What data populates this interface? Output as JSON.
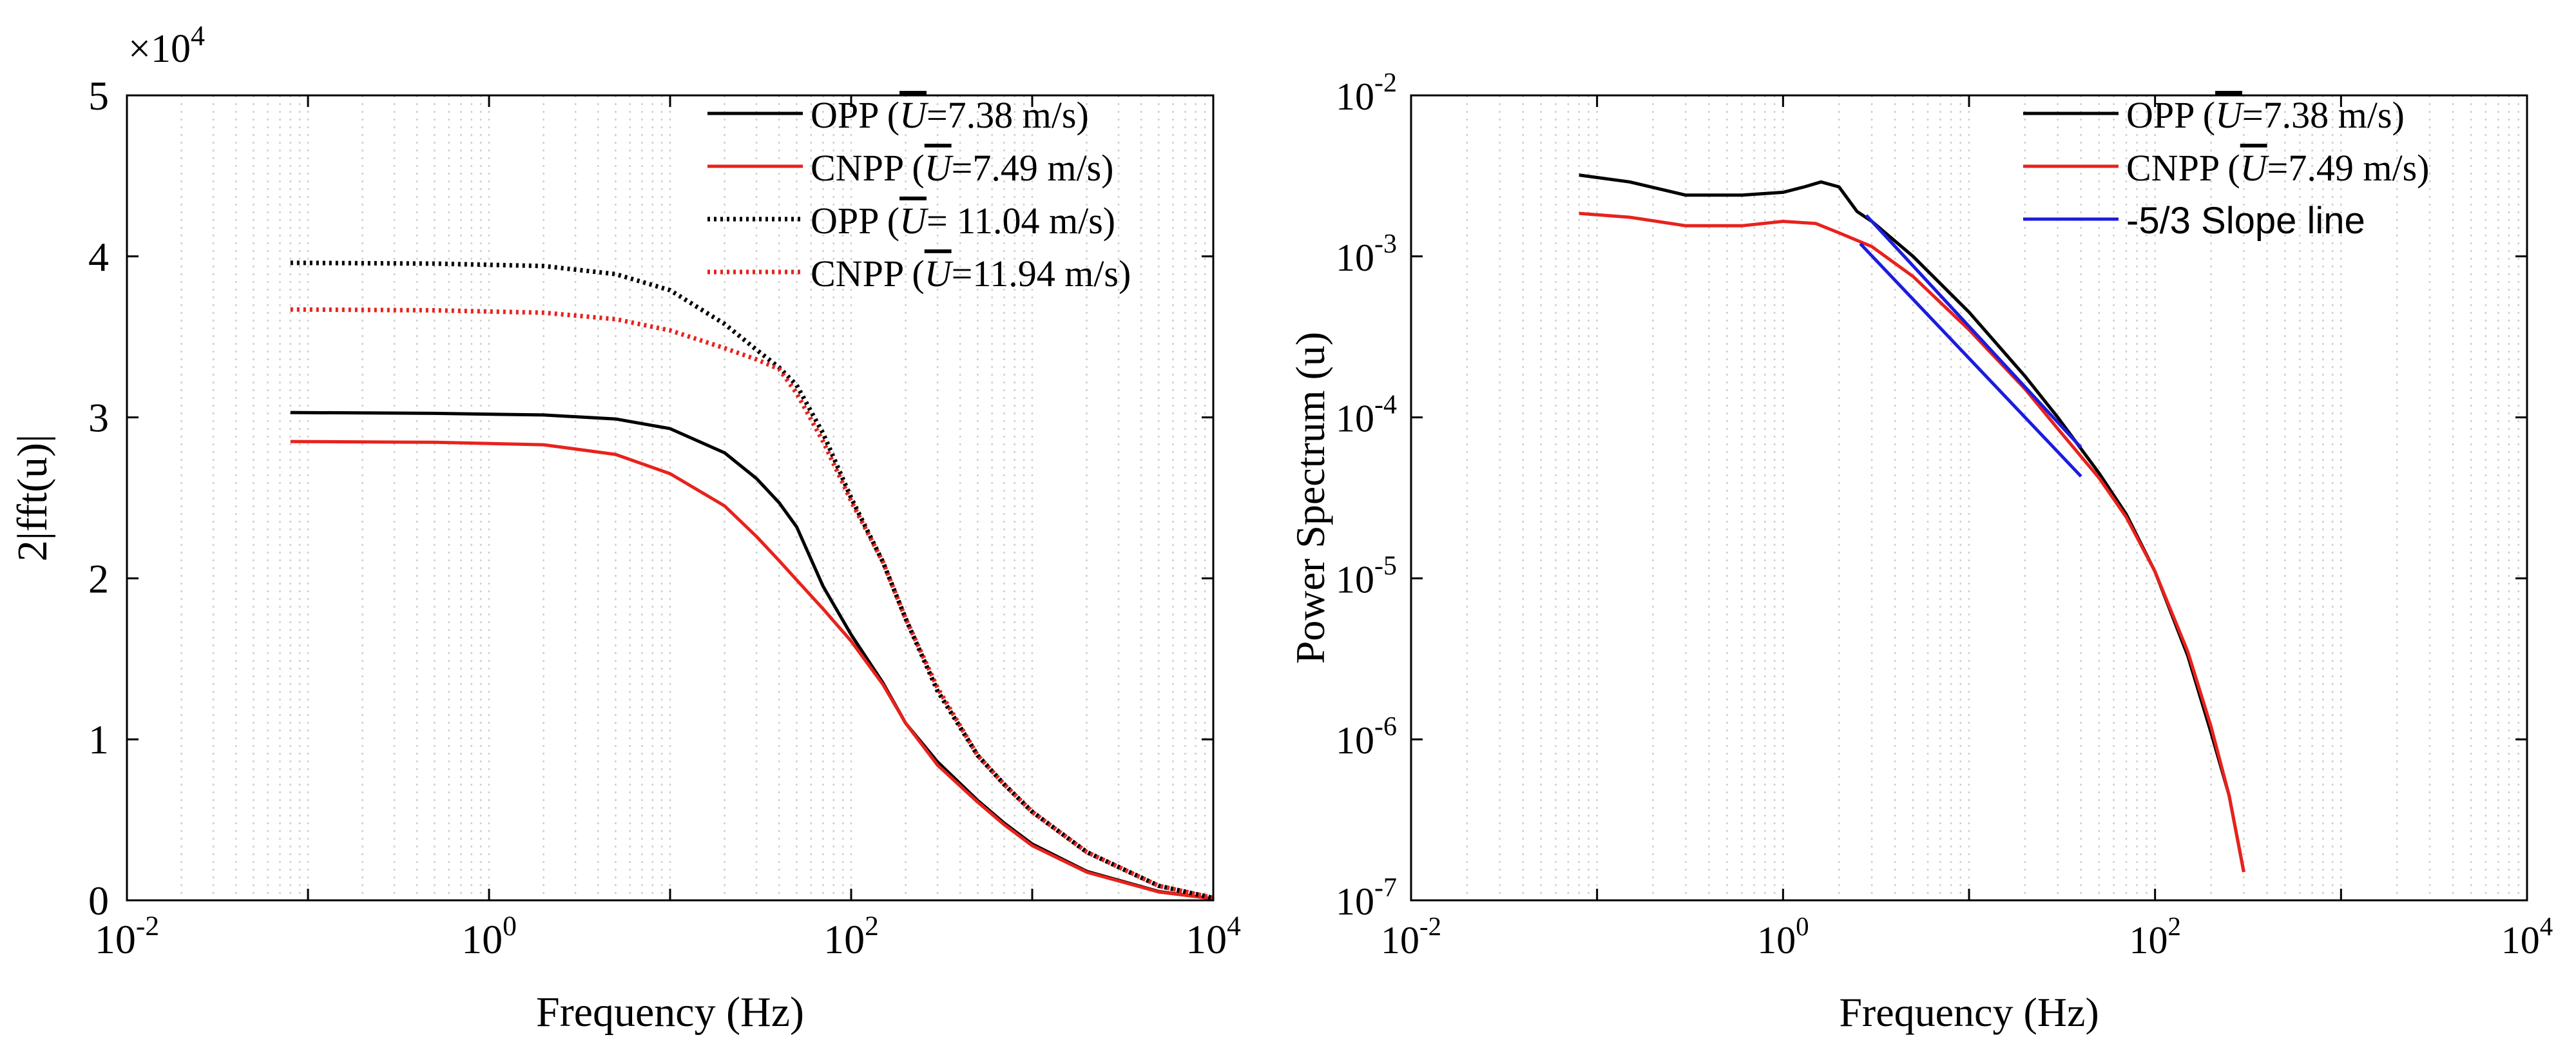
{
  "chart_data": [
    {
      "type": "line",
      "xscale": "log",
      "yscale": "linear",
      "xlabel": "Frequency (Hz)",
      "ylabel": "2|fft(u)|",
      "xlim": [
        0.01,
        10000
      ],
      "ylim": [
        0,
        50000
      ],
      "xticks": [
        {
          "base": "10",
          "exp": "-2"
        },
        {
          "base": "10",
          "exp": "0"
        },
        {
          "base": "10",
          "exp": "2"
        },
        {
          "base": "10",
          "exp": "4"
        }
      ],
      "yticks": [
        "0",
        "1",
        "2",
        "3",
        "4",
        "5"
      ],
      "yticks_values": [
        0,
        1,
        2,
        3,
        4,
        5
      ],
      "multiplier": {
        "base": "×10",
        "exp": "4"
      },
      "grid": "x-minor-dotted",
      "legend_position": "top-right",
      "series": [
        {
          "name": "OPP (Ū=7.38 m/s)",
          "label_prefix": "OPP (",
          "label_symbol": "U",
          "label_value": "=7.38 m/s)",
          "color": "#000000",
          "style": "solid",
          "points": [
            [
              0.08,
              30300
            ],
            [
              0.5,
              30250
            ],
            [
              2,
              30150
            ],
            [
              5,
              29900
            ],
            [
              10,
              29300
            ],
            [
              20,
              27800
            ],
            [
              30,
              26200
            ],
            [
              40,
              24700
            ],
            [
              50,
              23200
            ],
            [
              70,
              19500
            ],
            [
              100,
              16500
            ],
            [
              150,
              13500
            ],
            [
              200,
              11000
            ],
            [
              300,
              8600
            ],
            [
              500,
              6200
            ],
            [
              700,
              4800
            ],
            [
              1000,
              3500
            ],
            [
              2000,
              1800
            ],
            [
              5000,
              550
            ],
            [
              10000,
              100
            ]
          ]
        },
        {
          "name": "CNPP (Ū=7.49 m/s)",
          "label_prefix": "CNPP (",
          "label_symbol": "U",
          "label_value": "=7.49 m/s)",
          "color": "#e8221c",
          "style": "solid",
          "points": [
            [
              0.08,
              28500
            ],
            [
              0.5,
              28450
            ],
            [
              2,
              28300
            ],
            [
              5,
              27700
            ],
            [
              10,
              26500
            ],
            [
              20,
              24500
            ],
            [
              30,
              22600
            ],
            [
              40,
              21100
            ],
            [
              50,
              19900
            ],
            [
              70,
              18100
            ],
            [
              100,
              16100
            ],
            [
              150,
              13400
            ],
            [
              200,
              11000
            ],
            [
              300,
              8400
            ],
            [
              500,
              6100
            ],
            [
              700,
              4700
            ],
            [
              1000,
              3400
            ],
            [
              2000,
              1750
            ],
            [
              5000,
              520
            ],
            [
              10000,
              100
            ]
          ]
        },
        {
          "name": "OPP (Ū= 11.04 m/s)",
          "label_prefix": "OPP (",
          "label_symbol": "U",
          "label_value": "= 11.04 m/s)",
          "color": "#000000",
          "style": "dotted",
          "points": [
            [
              0.08,
              39600
            ],
            [
              0.5,
              39550
            ],
            [
              2,
              39400
            ],
            [
              5,
              38900
            ],
            [
              10,
              37900
            ],
            [
              20,
              35800
            ],
            [
              30,
              34200
            ],
            [
              40,
              33100
            ],
            [
              50,
              32000
            ],
            [
              70,
              29000
            ],
            [
              100,
              25000
            ],
            [
              150,
              21000
            ],
            [
              200,
              17500
            ],
            [
              300,
              13000
            ],
            [
              500,
              9000
            ],
            [
              700,
              7200
            ],
            [
              1000,
              5500
            ],
            [
              2000,
              3000
            ],
            [
              5000,
              900
            ],
            [
              10000,
              150
            ]
          ]
        },
        {
          "name": "CNPP (Ū=11.94 m/s)",
          "label_prefix": "CNPP (",
          "label_symbol": "U",
          "label_value": "=11.94 m/s)",
          "color": "#e8221c",
          "style": "dotted",
          "points": [
            [
              0.08,
              36700
            ],
            [
              0.5,
              36650
            ],
            [
              2,
              36500
            ],
            [
              5,
              36100
            ],
            [
              10,
              35400
            ],
            [
              20,
              34300
            ],
            [
              30,
              33600
            ],
            [
              40,
              33000
            ],
            [
              50,
              31500
            ],
            [
              70,
              28500
            ],
            [
              100,
              24800
            ],
            [
              150,
              21000
            ],
            [
              200,
              17500
            ],
            [
              300,
              13200
            ],
            [
              500,
              9000
            ],
            [
              700,
              7200
            ],
            [
              1000,
              5500
            ],
            [
              2000,
              3000
            ],
            [
              5000,
              900
            ],
            [
              10000,
              150
            ]
          ]
        }
      ]
    },
    {
      "type": "line",
      "xscale": "log",
      "yscale": "log",
      "xlabel": "Frequency (Hz)",
      "ylabel": "Power Spectrum (u)",
      "xlim": [
        0.01,
        10000
      ],
      "ylim": [
        1e-07,
        0.01
      ],
      "xticks": [
        {
          "base": "10",
          "exp": "-2"
        },
        {
          "base": "10",
          "exp": "0"
        },
        {
          "base": "10",
          "exp": "2"
        },
        {
          "base": "10",
          "exp": "4"
        }
      ],
      "yticks": [
        {
          "base": "10",
          "exp": "-7"
        },
        {
          "base": "10",
          "exp": "-6"
        },
        {
          "base": "10",
          "exp": "-5"
        },
        {
          "base": "10",
          "exp": "-4"
        },
        {
          "base": "10",
          "exp": "-3"
        },
        {
          "base": "10",
          "exp": "-2"
        }
      ],
      "yticks_exp": [
        -7,
        -6,
        -5,
        -4,
        -3,
        -2
      ],
      "grid": "x-minor-dotted",
      "legend_position": "top-right",
      "series": [
        {
          "name": "OPP (Ū=7.38 m/s)",
          "label_prefix": "OPP (",
          "label_symbol": "U",
          "label_value": "=7.38 m/s)",
          "color": "#000000",
          "style": "solid",
          "points": [
            [
              0.08,
              0.0032
            ],
            [
              0.15,
              0.0029
            ],
            [
              0.3,
              0.0024
            ],
            [
              0.6,
              0.0024
            ],
            [
              1,
              0.0025
            ],
            [
              1.3,
              0.0027
            ],
            [
              1.6,
              0.0029
            ],
            [
              2,
              0.0027
            ],
            [
              2.5,
              0.0019
            ],
            [
              3,
              0.00165
            ],
            [
              5,
              0.001
            ],
            [
              10,
              0.00045
            ],
            [
              20,
              0.00018
            ],
            [
              30,
              0.0001
            ],
            [
              50,
              4.5e-05
            ],
            [
              70,
              2.5e-05
            ],
            [
              100,
              1.1e-05
            ],
            [
              150,
              3.3e-06
            ],
            [
              200,
              1.1e-06
            ],
            [
              250,
              4.5e-07
            ],
            [
              300,
              1.5e-07
            ]
          ]
        },
        {
          "name": "CNPP (Ū=7.49 m/s)",
          "label_prefix": "CNPP (",
          "label_symbol": "U",
          "label_value": "=7.49 m/s)",
          "color": "#e8221c",
          "style": "solid",
          "points": [
            [
              0.08,
              0.00185
            ],
            [
              0.15,
              0.00175
            ],
            [
              0.3,
              0.00155
            ],
            [
              0.6,
              0.00155
            ],
            [
              1,
              0.00165
            ],
            [
              1.5,
              0.0016
            ],
            [
              2,
              0.0014
            ],
            [
              3,
              0.00115
            ],
            [
              5,
              0.00075
            ],
            [
              10,
              0.00035
            ],
            [
              20,
              0.00015
            ],
            [
              30,
              8.5e-05
            ],
            [
              50,
              4.2e-05
            ],
            [
              70,
              2.4e-05
            ],
            [
              100,
              1.1e-05
            ],
            [
              150,
              3.5e-06
            ],
            [
              200,
              1.2e-06
            ],
            [
              250,
              4.5e-07
            ],
            [
              300,
              1.5e-07
            ]
          ]
        },
        {
          "name": "-5/3 Slope line",
          "label_value": "-5/3 Slope line",
          "color": "#1c1cdc",
          "style": "solid",
          "segments": [
            [
              [
                2.8,
                0.0018
              ],
              [
                40,
                6.5e-05
              ]
            ],
            [
              [
                2.6,
                0.0012
              ],
              [
                40,
                4.3e-05
              ]
            ]
          ]
        }
      ]
    }
  ]
}
